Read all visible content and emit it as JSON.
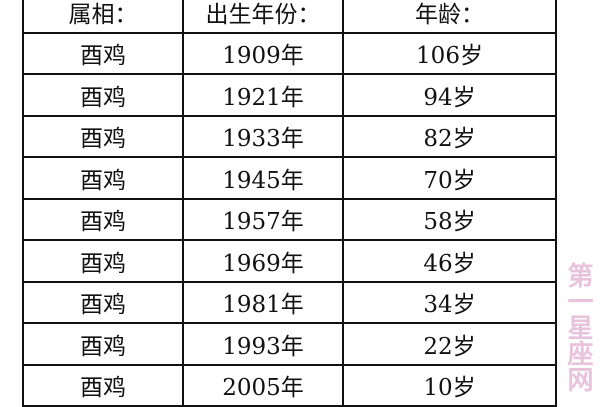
{
  "table": {
    "headers": [
      "属相：",
      "出生年份：",
      "年龄："
    ],
    "rows": [
      [
        "酉鸡",
        "1909年",
        "106岁"
      ],
      [
        "酉鸡",
        "1921年",
        "94岁"
      ],
      [
        "酉鸡",
        "1933年",
        "82岁"
      ],
      [
        "酉鸡",
        "1945年",
        "70岁"
      ],
      [
        "酉鸡",
        "1957年",
        "58岁"
      ],
      [
        "酉鸡",
        "1969年",
        "46岁"
      ],
      [
        "酉鸡",
        "1981年",
        "34岁"
      ],
      [
        "酉鸡",
        "1993年",
        "22岁"
      ],
      [
        "酉鸡",
        "2005年",
        "10岁"
      ]
    ]
  },
  "watermark": "第一星座网"
}
